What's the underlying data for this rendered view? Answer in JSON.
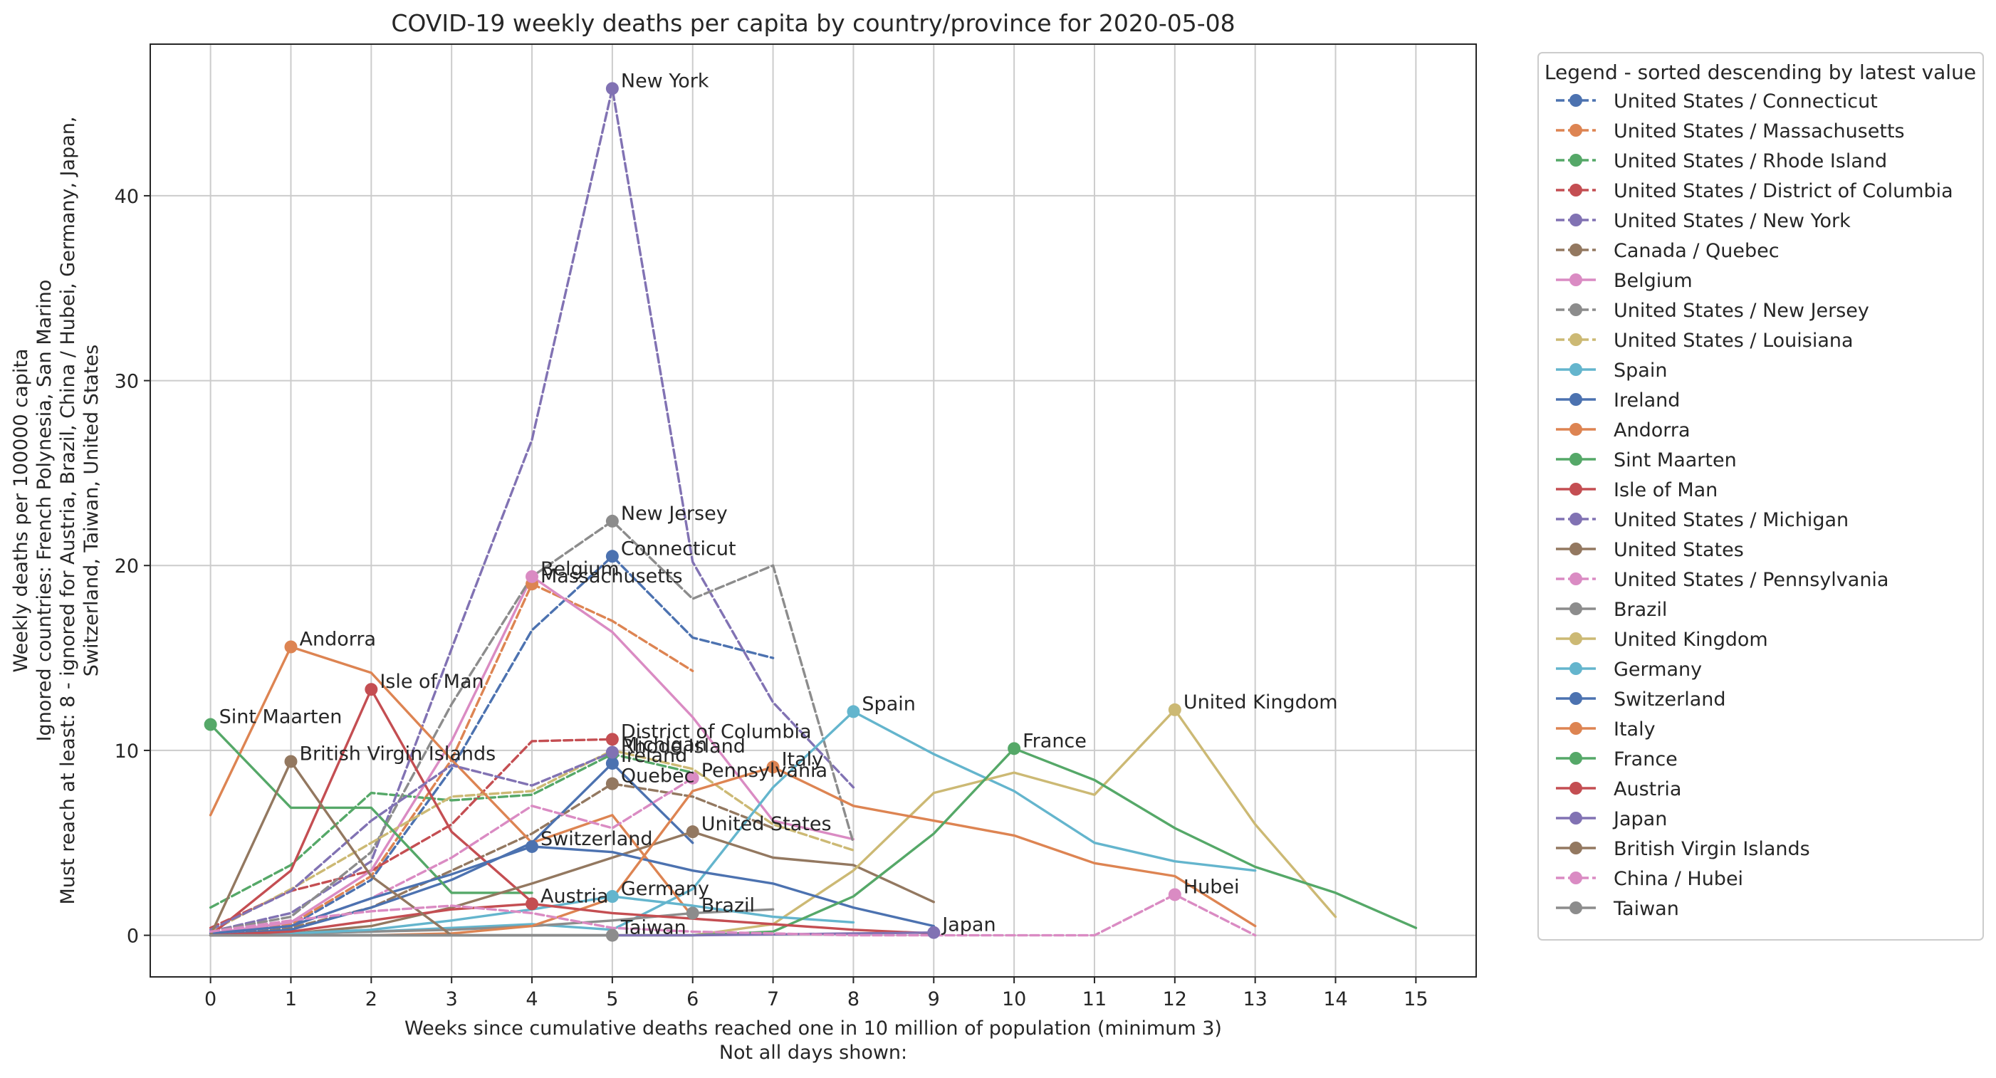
{
  "chart_data": {
    "type": "line",
    "title": "COVID-19 weekly deaths per capita by country/province for 2020-05-08",
    "xlabel": [
      "Weeks since cumulative deaths reached one in 10 million of population (minimum 3)",
      "Not all days shown:"
    ],
    "ylabel": [
      "Weekly deaths per 100000 capita",
      "Ignored countries: French Polynesia, San Marino",
      "Must reach at least: 8 - ignored for Austria, Brazil, China / Hubei, Germany, Japan,",
      "Switzerland, Taiwan, United States"
    ],
    "xlim": [
      -0.75,
      15.75
    ],
    "ylim": [
      -2.25,
      48.2
    ],
    "xticks": [
      0,
      1,
      2,
      3,
      4,
      5,
      6,
      7,
      8,
      9,
      10,
      11,
      12,
      13,
      14,
      15
    ],
    "yticks": [
      0,
      10,
      20,
      30,
      40
    ],
    "grid": true,
    "legend": {
      "title": "Legend - sorted descending by latest value",
      "placement": "outside-right"
    },
    "series": [
      {
        "name": "United States / Connecticut",
        "label": "Connecticut",
        "color": "#4c72b0",
        "dash": true,
        "x": [
          0,
          1,
          2,
          3,
          4,
          5,
          6,
          7
        ],
        "y": [
          0.1,
          0.5,
          3.0,
          9.0,
          16.5,
          20.5,
          16.1,
          15.0
        ],
        "marker_x": 5,
        "marker_y": 20.5
      },
      {
        "name": "United States / Massachusetts",
        "label": "Massachusetts",
        "color": "#dd8452",
        "dash": true,
        "x": [
          0,
          1,
          2,
          3,
          4,
          5,
          6
        ],
        "y": [
          0.1,
          0.6,
          3.2,
          9.5,
          19.0,
          17.0,
          14.3
        ],
        "marker_x": 4,
        "marker_y": 19.0
      },
      {
        "name": "United States / Rhode Island",
        "label": "Rhode Island",
        "color": "#55a868",
        "dash": true,
        "x": [
          0,
          1,
          2,
          3,
          4,
          5,
          6
        ],
        "y": [
          1.5,
          3.8,
          7.7,
          7.3,
          7.6,
          9.8,
          8.8
        ],
        "marker_x": 5,
        "marker_y": 9.8
      },
      {
        "name": "United States / District of Columbia",
        "label": "District of Columbia",
        "color": "#c44e52",
        "dash": true,
        "x": [
          0,
          1,
          2,
          3,
          4,
          5
        ],
        "y": [
          0.4,
          2.4,
          3.5,
          6.0,
          10.5,
          10.6
        ],
        "marker_x": 5,
        "marker_y": 10.6
      },
      {
        "name": "United States / New York",
        "label": "New York",
        "color": "#8172b3",
        "dash": true,
        "x": [
          0,
          1,
          2,
          3,
          4,
          5,
          6,
          7,
          8
        ],
        "y": [
          0.2,
          1.2,
          4.0,
          15.5,
          26.8,
          45.8,
          20.2,
          12.6,
          8.0
        ],
        "marker_x": 5,
        "marker_y": 45.8
      },
      {
        "name": "Canada / Quebec",
        "label": "Quebec",
        "color": "#937860",
        "dash": true,
        "x": [
          0,
          1,
          2,
          3,
          4,
          5,
          6,
          7
        ],
        "y": [
          0.1,
          0.4,
          1.5,
          3.5,
          5.5,
          8.2,
          7.5,
          5.8
        ],
        "marker_x": 5,
        "marker_y": 8.2
      },
      {
        "name": "Belgium",
        "label": "Belgium",
        "color": "#da8bc3",
        "dash": false,
        "x": [
          0,
          1,
          2,
          3,
          4,
          5,
          6,
          7,
          8
        ],
        "y": [
          0.1,
          0.7,
          3.5,
          10.5,
          19.4,
          16.4,
          11.8,
          6.2,
          5.2
        ],
        "marker_x": 4,
        "marker_y": 19.4
      },
      {
        "name": "United States / New Jersey",
        "label": "New Jersey",
        "color": "#8c8c8c",
        "dash": true,
        "x": [
          0,
          1,
          2,
          3,
          4,
          5,
          6,
          7,
          8
        ],
        "y": [
          0.2,
          1.0,
          4.5,
          12.5,
          19.4,
          22.4,
          18.2,
          20.0,
          5.0
        ],
        "marker_x": 5,
        "marker_y": 22.4
      },
      {
        "name": "United States / Louisiana",
        "label": "Louisiana",
        "color": "#ccb974",
        "dash": true,
        "x": [
          0,
          1,
          2,
          3,
          4,
          5,
          6,
          7,
          8
        ],
        "y": [
          0.2,
          2.5,
          5.0,
          7.5,
          7.8,
          10.0,
          9.0,
          6.0,
          4.6
        ],
        "marker_x": null,
        "marker_y": null
      },
      {
        "name": "Spain",
        "label": "Spain",
        "color": "#64b5cd",
        "dash": false,
        "x": [
          0,
          1,
          2,
          3,
          4,
          5,
          6,
          7,
          8,
          9,
          10,
          11,
          12,
          13
        ],
        "y": [
          0.0,
          0.1,
          0.2,
          0.4,
          0.6,
          0.3,
          2.5,
          8.0,
          12.1,
          9.8,
          7.8,
          5.0,
          4.0,
          3.5
        ],
        "marker_x": 8,
        "marker_y": 12.1
      },
      {
        "name": "Ireland",
        "label": "Ireland",
        "color": "#4c72b0",
        "dash": false,
        "x": [
          0,
          1,
          2,
          3,
          4,
          5,
          6
        ],
        "y": [
          0.0,
          0.3,
          1.5,
          3.0,
          5.0,
          9.3,
          5.0
        ],
        "marker_x": 5,
        "marker_y": 9.3
      },
      {
        "name": "Andorra",
        "label": "Andorra",
        "color": "#dd8452",
        "dash": false,
        "x": [
          0,
          1,
          2,
          3,
          4,
          5,
          6
        ],
        "y": [
          6.5,
          15.6,
          14.2,
          9.5,
          5.0,
          6.5,
          1.0
        ],
        "marker_x": 1,
        "marker_y": 15.6
      },
      {
        "name": "Sint Maarten",
        "label": "Sint Maarten",
        "color": "#55a868",
        "dash": false,
        "x": [
          0,
          1,
          2,
          3,
          4
        ],
        "y": [
          11.4,
          6.9,
          6.9,
          2.3,
          2.3
        ],
        "marker_x": 0,
        "marker_y": 11.4
      },
      {
        "name": "Isle of Man",
        "label": "Isle of Man",
        "color": "#c44e52",
        "dash": false,
        "x": [
          0,
          1,
          2,
          3,
          4
        ],
        "y": [
          0.0,
          3.5,
          13.3,
          5.6,
          1.8
        ],
        "marker_x": 2,
        "marker_y": 13.3
      },
      {
        "name": "United States / Michigan",
        "label": "Michigan",
        "color": "#8172b3",
        "dash": true,
        "x": [
          0,
          1,
          2,
          3,
          4,
          5
        ],
        "y": [
          0.3,
          2.4,
          6.2,
          9.2,
          8.1,
          9.9
        ],
        "marker_x": 5,
        "marker_y": 9.9
      },
      {
        "name": "United States",
        "label": "United States",
        "color": "#937860",
        "dash": false,
        "x": [
          0,
          1,
          2,
          3,
          4,
          5,
          6,
          7,
          8,
          9
        ],
        "y": [
          0.0,
          0.1,
          0.5,
          1.5,
          2.8,
          4.2,
          5.6,
          4.2,
          3.8,
          1.8
        ],
        "marker_x": 6,
        "marker_y": 5.6
      },
      {
        "name": "United States / Pennsylvania",
        "label": "Pennsylvania",
        "color": "#da8bc3",
        "dash": true,
        "x": [
          0,
          1,
          2,
          3,
          4,
          5,
          6
        ],
        "y": [
          0.1,
          0.5,
          2.0,
          4.2,
          7.0,
          5.8,
          8.5
        ],
        "marker_x": 6,
        "marker_y": 8.5
      },
      {
        "name": "Brazil",
        "label": "Brazil",
        "color": "#8c8c8c",
        "dash": false,
        "x": [
          0,
          1,
          2,
          3,
          4,
          5,
          6,
          7
        ],
        "y": [
          0.0,
          0.1,
          0.2,
          0.3,
          0.5,
          0.8,
          1.2,
          1.4
        ],
        "marker_x": 6,
        "marker_y": 1.2
      },
      {
        "name": "United Kingdom",
        "label": "United Kingdom",
        "color": "#ccb974",
        "dash": false,
        "x": [
          0,
          1,
          2,
          3,
          4,
          5,
          6,
          7,
          8,
          9,
          10,
          11,
          12,
          13,
          14
        ],
        "y": [
          0.0,
          0.0,
          0.0,
          0.0,
          0.0,
          0.0,
          0.0,
          0.6,
          3.5,
          7.7,
          8.8,
          7.6,
          12.2,
          6.0,
          1.0
        ],
        "marker_x": 12,
        "marker_y": 12.2
      },
      {
        "name": "Germany",
        "label": "Germany",
        "color": "#64b5cd",
        "dash": false,
        "x": [
          0,
          1,
          2,
          3,
          4,
          5,
          6,
          7,
          8
        ],
        "y": [
          0.0,
          0.1,
          0.3,
          0.8,
          1.4,
          2.1,
          1.6,
          1.0,
          0.7
        ],
        "marker_x": 5,
        "marker_y": 2.1
      },
      {
        "name": "Switzerland",
        "label": "Switzerland",
        "color": "#4c72b0",
        "dash": false,
        "x": [
          0,
          1,
          2,
          3,
          4,
          5,
          6,
          7,
          8,
          9
        ],
        "y": [
          0.1,
          0.5,
          2.0,
          3.3,
          4.8,
          4.5,
          3.5,
          2.8,
          1.5,
          0.5
        ],
        "marker_x": 4,
        "marker_y": 4.8
      },
      {
        "name": "Italy",
        "label": "Italy",
        "color": "#dd8452",
        "dash": false,
        "x": [
          0,
          1,
          2,
          3,
          4,
          5,
          6,
          7,
          8,
          9,
          10,
          11,
          12,
          13
        ],
        "y": [
          0.0,
          0.0,
          0.0,
          0.1,
          0.5,
          2.0,
          7.8,
          9.1,
          7.0,
          6.2,
          5.4,
          3.9,
          3.2,
          0.5
        ],
        "marker_x": 7,
        "marker_y": 9.1
      },
      {
        "name": "France",
        "label": "France",
        "color": "#55a868",
        "dash": false,
        "x": [
          0,
          1,
          2,
          3,
          4,
          5,
          6,
          7,
          8,
          9,
          10,
          11,
          12,
          13,
          14,
          15
        ],
        "y": [
          0.0,
          0.0,
          0.0,
          0.0,
          0.0,
          0.0,
          0.0,
          0.2,
          2.1,
          5.5,
          10.1,
          8.4,
          5.8,
          3.7,
          2.3,
          0.4
        ],
        "marker_x": 10,
        "marker_y": 10.1
      },
      {
        "name": "Austria",
        "label": "Austria",
        "color": "#c44e52",
        "dash": false,
        "x": [
          0,
          1,
          2,
          3,
          4,
          5,
          6,
          7,
          8,
          9
        ],
        "y": [
          0.0,
          0.2,
          0.8,
          1.4,
          1.7,
          1.2,
          0.9,
          0.6,
          0.3,
          0.1
        ],
        "marker_x": 4,
        "marker_y": 1.7
      },
      {
        "name": "Japan",
        "label": "Japan",
        "color": "#8172b3",
        "dash": false,
        "x": [
          0,
          1,
          2,
          3,
          4,
          5,
          6,
          7,
          8,
          9
        ],
        "y": [
          0.0,
          0.0,
          0.0,
          0.0,
          0.0,
          0.0,
          0.0,
          0.05,
          0.1,
          0.15
        ],
        "marker_x": 9,
        "marker_y": 0.15
      },
      {
        "name": "British Virgin Islands",
        "label": "British Virgin Islands",
        "color": "#937860",
        "dash": false,
        "x": [
          0,
          1,
          2,
          3
        ],
        "y": [
          0.0,
          9.4,
          3.2,
          0.0
        ],
        "marker_x": 1,
        "marker_y": 9.4
      },
      {
        "name": "China / Hubei",
        "label": "Hubei",
        "color": "#da8bc3",
        "dash": true,
        "x": [
          0,
          1,
          2,
          3,
          4,
          5,
          6,
          7,
          8,
          9,
          10,
          11,
          12,
          13
        ],
        "y": [
          0.2,
          0.8,
          1.3,
          1.6,
          1.2,
          0.4,
          0.2,
          0.1,
          0.0,
          0.0,
          0.0,
          0.0,
          2.2,
          0.0
        ],
        "marker_x": 12,
        "marker_y": 2.2
      },
      {
        "name": "Taiwan",
        "label": "Taiwan",
        "color": "#8c8c8c",
        "dash": false,
        "x": [
          0,
          1,
          2,
          3,
          4,
          5
        ],
        "y": [
          0.0,
          0.0,
          0.0,
          0.0,
          0.0,
          0.0
        ],
        "marker_x": 5,
        "marker_y": 0.0
      }
    ]
  }
}
